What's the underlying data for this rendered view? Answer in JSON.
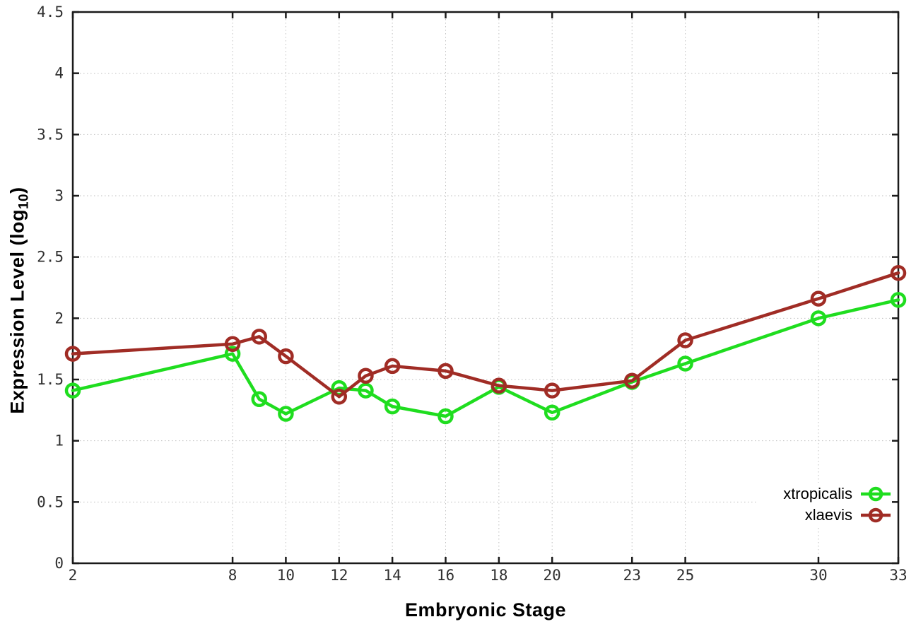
{
  "chart_data": {
    "type": "line",
    "title": "",
    "xlabel": "Embryonic Stage",
    "ylabel": "Expression Level (log10)",
    "ylabel_parts": {
      "main": "Expression Level (log",
      "sub": "10",
      "end": ")"
    },
    "xlim": [
      2,
      33
    ],
    "ylim": [
      0,
      4.5
    ],
    "x_ticks": [
      2,
      8,
      10,
      12,
      14,
      16,
      18,
      20,
      23,
      25,
      30,
      33
    ],
    "x_tick_labels": [
      "2",
      "8",
      "10",
      "12",
      "14",
      "16",
      "18",
      "20",
      "23",
      "25",
      "30",
      "33"
    ],
    "y_ticks": [
      0,
      0.5,
      1,
      1.5,
      2,
      2.5,
      3,
      3.5,
      4,
      4.5
    ],
    "y_tick_labels": [
      "0",
      "0.5",
      "1",
      "1.5",
      "2",
      "2.5",
      "3",
      "3.5",
      "4",
      "4.5"
    ],
    "grid": true,
    "marker": "open-circle",
    "legend_position": "bottom-right-inside",
    "x": [
      2,
      8,
      9,
      10,
      12,
      13,
      14,
      16,
      18,
      20,
      23,
      25,
      30,
      33
    ],
    "series": [
      {
        "name": "xtropicalis",
        "color": "#1fdd1f",
        "values": [
          1.41,
          1.71,
          1.34,
          1.22,
          1.43,
          1.41,
          1.28,
          1.2,
          1.44,
          1.23,
          1.48,
          1.63,
          2.0,
          2.15
        ]
      },
      {
        "name": "xlaevis",
        "color": "#a02c25",
        "values": [
          1.71,
          1.79,
          1.85,
          1.69,
          1.36,
          1.53,
          1.61,
          1.57,
          1.45,
          1.41,
          1.49,
          1.82,
          2.16,
          2.37
        ]
      }
    ],
    "colors": {
      "background": "#ffffff",
      "axis": "#1a1a1a",
      "grid": "#bfbfbf",
      "tick_label": "#2f2f2f"
    }
  }
}
